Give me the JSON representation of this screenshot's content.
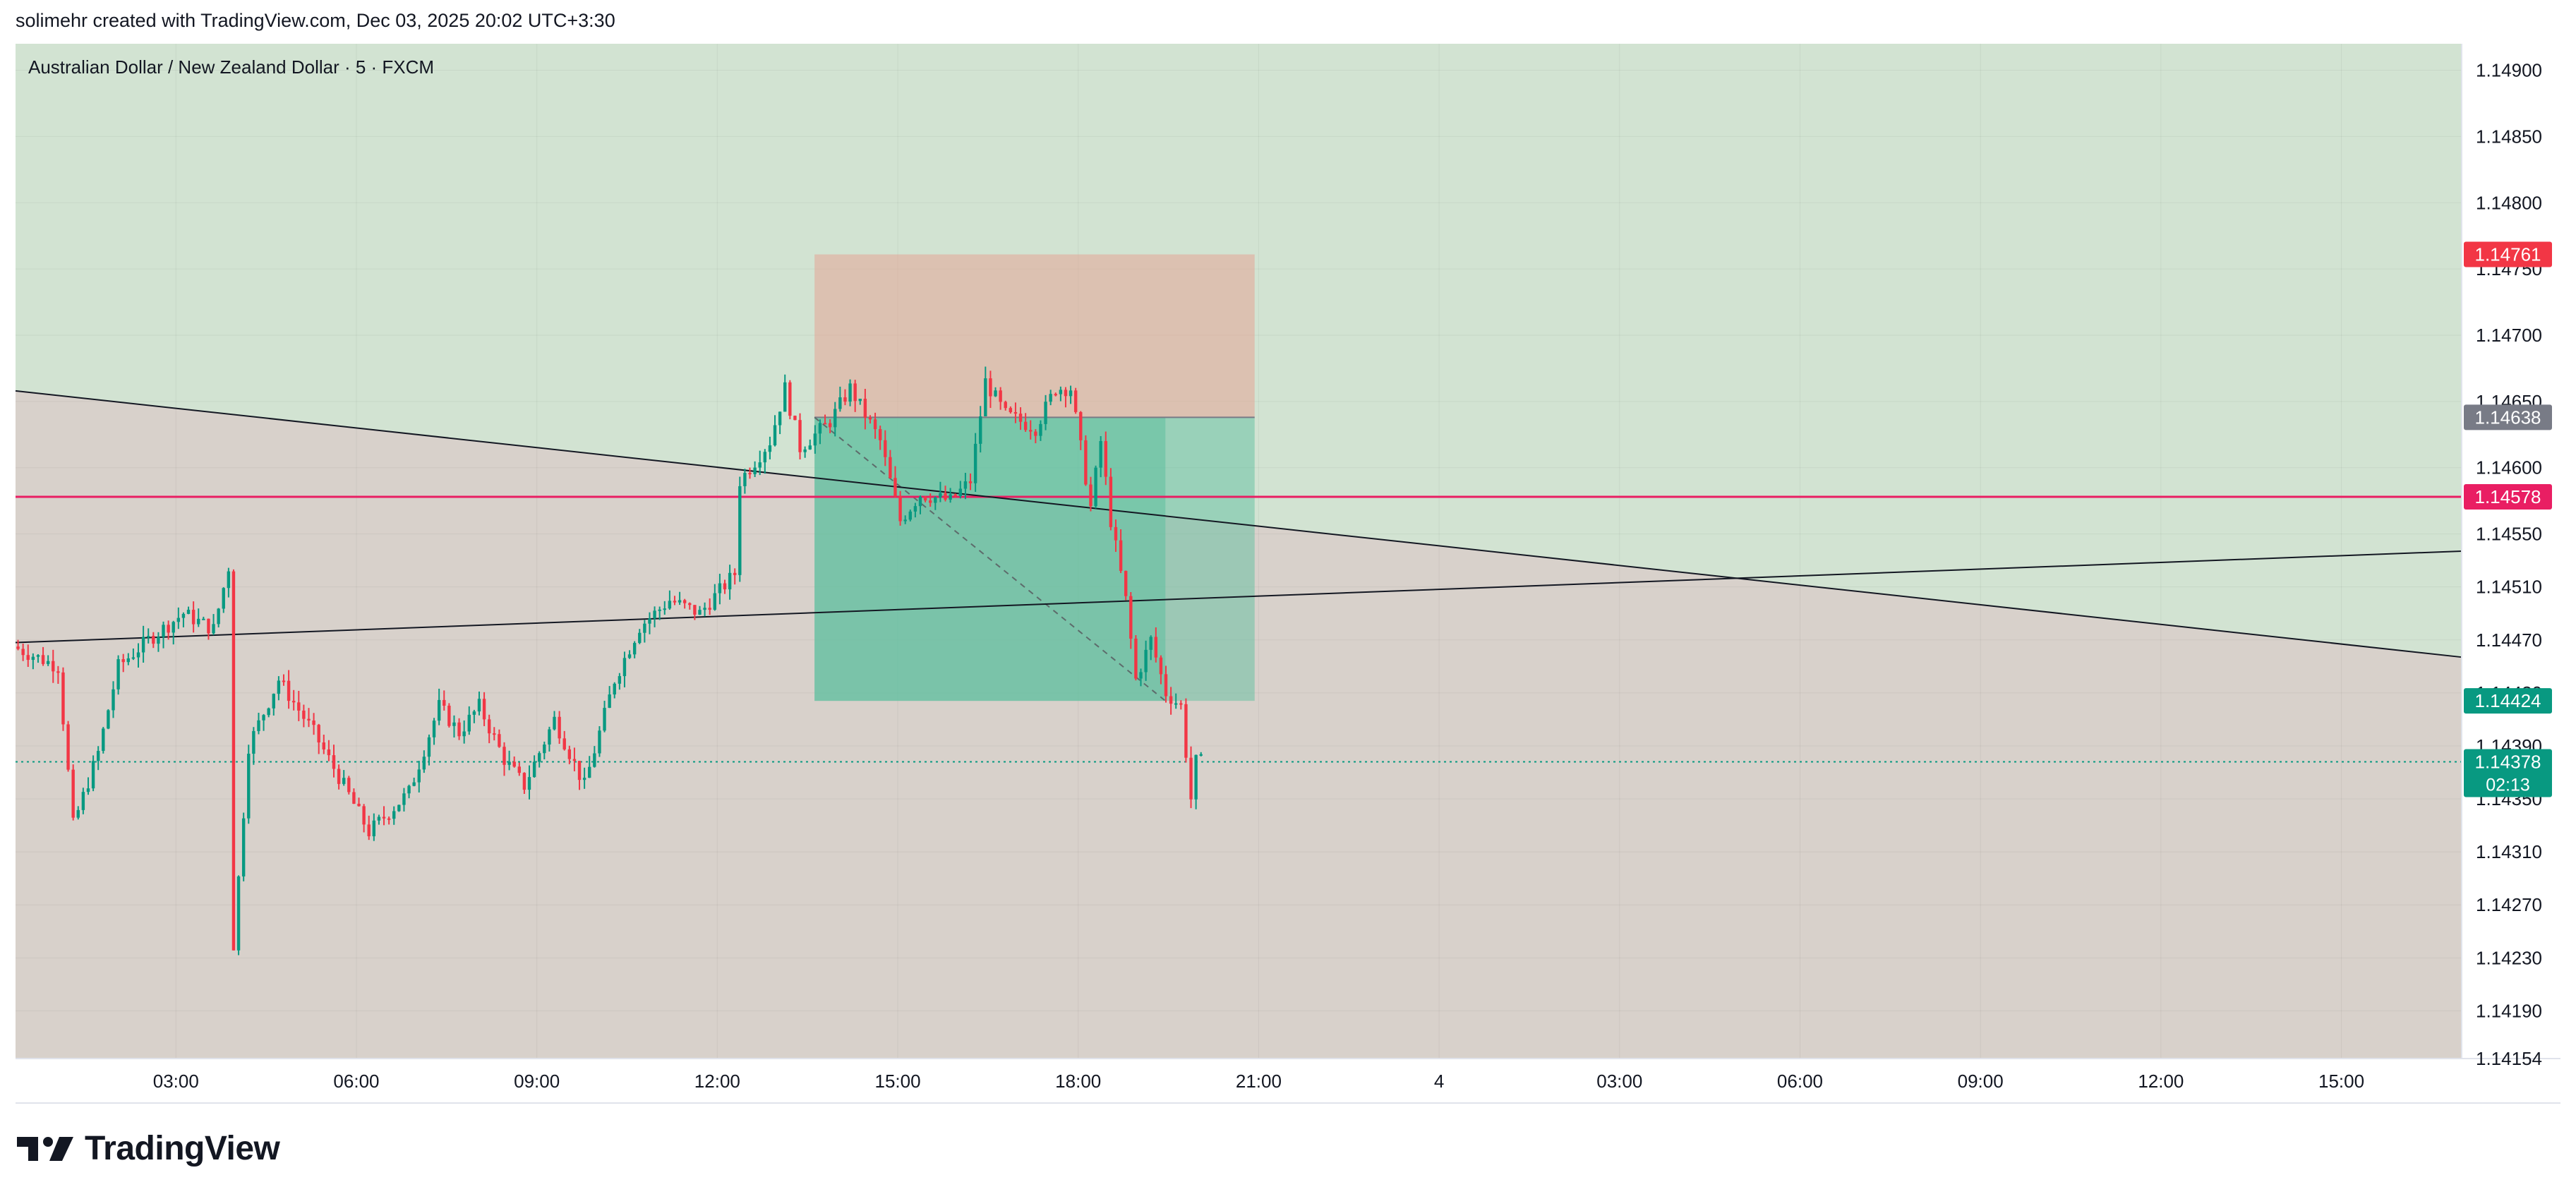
{
  "header": {
    "created_text": "solimehr created with TradingView.com, Dec 03, 2025 20:02 UTC+3:30"
  },
  "brand": {
    "name": "TradingView",
    "logo_icon": "tradingview-logo-icon"
  },
  "colors": {
    "up": "#089981",
    "down": "#f23645",
    "lossZone": "#e3a596",
    "profitZone": "#5fbf9f",
    "bgGreen": "#d2e3d2",
    "bgTan": "#d8d1cb",
    "hline": "#e91e63",
    "current": "#089981"
  },
  "chart_data": {
    "type": "candlestick",
    "symbol_title": "Australian Dollar / New Zealand Dollar · 5 · FXCM",
    "x_tick_labels": [
      "03:00",
      "06:00",
      "09:00",
      "12:00",
      "15:00",
      "18:00",
      "21:00",
      "4",
      "03:00",
      "06:00",
      "09:00",
      "12:00",
      "15:00"
    ],
    "y_tick_labels": [
      "1.14900",
      "1.14850",
      "1.14800",
      "1.14750",
      "1.14700",
      "1.14650",
      "1.14600",
      "1.14550",
      "1.14510",
      "1.14470",
      "1.14430",
      "1.14390",
      "1.14350",
      "1.14310",
      "1.14270",
      "1.14230",
      "1.14190",
      "1.14154"
    ],
    "time_range": [
      "Dec 3 00:20",
      "Dec 4 17:00"
    ],
    "ylim": [
      1.14154,
      1.1492
    ],
    "price_labels": [
      {
        "value": "1.14761",
        "color": "#f23645",
        "name": "stop-loss-price-label"
      },
      {
        "value": "1.14638",
        "color": "#787b86",
        "name": "entry-price-label"
      },
      {
        "value": "1.14578",
        "color": "#e91e63",
        "name": "horizontal-line-price-label"
      },
      {
        "value": "1.14424",
        "color": "#089981",
        "name": "take-profit-price-label"
      }
    ],
    "current_price": {
      "value": "1.14378",
      "countdown": "02:13"
    },
    "horizontal_line": 1.14578,
    "short_position": {
      "start_time": "Dec 3 13:37",
      "end_time": "Dec 3 20:56",
      "entry": 1.14638,
      "stop": 1.14761,
      "target": 1.14424,
      "close_time": "Dec 3 19:27"
    },
    "trend_lines": [
      {
        "from": [
          "Dec 3 00:20",
          1.14658
        ],
        "to": [
          "Dec 4 17:00",
          1.14457
        ]
      },
      {
        "from": [
          "Dec 3 00:20",
          1.14468
        ],
        "to": [
          "Dec 4 17:00",
          1.14537
        ]
      }
    ],
    "candle_path": [
      [
        "Dec 3 00:20",
        1.14465
      ],
      [
        "Dec 3 01:05",
        1.1445
      ],
      [
        "Dec 3 01:20",
        1.1433
      ],
      [
        "Dec 3 01:45",
        1.14385
      ],
      [
        "Dec 3 02:05",
        1.1445
      ],
      [
        "Dec 3 02:35",
        1.1447
      ],
      [
        "Dec 3 03:10",
        1.1449
      ],
      [
        "Dec 3 03:40",
        1.14478
      ],
      [
        "Dec 3 03:55",
        1.14525
      ],
      [
        "Dec 3 04:00",
        1.1424
      ],
      [
        "Dec 3 04:15",
        1.1439
      ],
      [
        "Dec 3 04:45",
        1.1444
      ],
      [
        "Dec 3 05:20",
        1.144
      ],
      [
        "Dec 3 05:50",
        1.1436
      ],
      [
        "Dec 3 06:15",
        1.14325
      ],
      [
        "Dec 3 06:55",
        1.14355
      ],
      [
        "Dec 3 07:25",
        1.1442
      ],
      [
        "Dec 3 07:45",
        1.144
      ],
      [
        "Dec 3 08:05",
        1.1442
      ],
      [
        "Dec 3 08:30",
        1.1438
      ],
      [
        "Dec 3 08:50",
        1.1436
      ],
      [
        "Dec 3 09:20",
        1.1441
      ],
      [
        "Dec 3 09:50",
        1.1436
      ],
      [
        "Dec 3 10:20",
        1.1444
      ],
      [
        "Dec 3 10:45",
        1.1448
      ],
      [
        "Dec 3 11:15",
        1.145
      ],
      [
        "Dec 3 11:45",
        1.1449
      ],
      [
        "Dec 3 12:20",
        1.1452
      ],
      [
        "Dec 3 12:25",
        1.1459
      ],
      [
        "Dec 3 12:55",
        1.1462
      ],
      [
        "Dec 3 13:10",
        1.1466
      ],
      [
        "Dec 3 13:25",
        1.14615
      ],
      [
        "Dec 3 13:55",
        1.14635
      ],
      [
        "Dec 3 14:15",
        1.1466
      ],
      [
        "Dec 3 14:45",
        1.1462
      ],
      [
        "Dec 3 15:05",
        1.1456
      ],
      [
        "Dec 3 15:25",
        1.1458
      ],
      [
        "Dec 3 15:55",
        1.14575
      ],
      [
        "Dec 3 16:15",
        1.1459
      ],
      [
        "Dec 3 16:30",
        1.14665
      ],
      [
        "Dec 3 16:50",
        1.1464
      ],
      [
        "Dec 3 17:20",
        1.1463
      ],
      [
        "Dec 3 17:40",
        1.1466
      ],
      [
        "Dec 3 17:55",
        1.1466
      ],
      [
        "Dec 3 18:15",
        1.1457
      ],
      [
        "Dec 3 18:25",
        1.1462
      ],
      [
        "Dec 3 18:35",
        1.1456
      ],
      [
        "Dec 3 18:50",
        1.145
      ],
      [
        "Dec 3 19:00",
        1.1444
      ],
      [
        "Dec 3 19:15",
        1.1447
      ],
      [
        "Dec 3 19:30",
        1.1443
      ],
      [
        "Dec 3 19:45",
        1.1442
      ],
      [
        "Dec 3 19:55",
        1.1435
      ],
      [
        "Dec 3 20:00",
        1.14378
      ]
    ]
  }
}
